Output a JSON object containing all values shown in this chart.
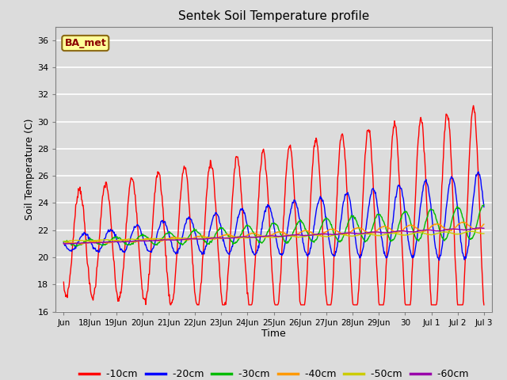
{
  "title": "Sentek Soil Temperature profile",
  "xlabel": "Time",
  "ylabel": "Soil Temperature (C)",
  "ylim": [
    16,
    37
  ],
  "yticks": [
    16,
    18,
    20,
    22,
    24,
    26,
    28,
    30,
    32,
    34,
    36
  ],
  "background_color": "#dcdcdc",
  "plot_bg_color": "#dcdcdc",
  "legend_label": "BA_met",
  "legend_bg": "#ffff99",
  "legend_border": "#8b6914",
  "line_colors": {
    "-10cm": "#ff0000",
    "-20cm": "#0000ff",
    "-30cm": "#00bb00",
    "-40cm": "#ff9900",
    "-50cm": "#cccc00",
    "-60cm": "#9900aa"
  },
  "xtick_positions": [
    0,
    1,
    2,
    3,
    4,
    5,
    6,
    7,
    8,
    9,
    10,
    11,
    12,
    13,
    14,
    15,
    16
  ],
  "xtick_labels": [
    "Jun",
    "18Jun",
    "19Jun",
    "20Jun",
    "21Jun",
    "22Jun",
    "23Jun",
    "24Jun",
    "25Jun",
    "26Jun",
    "27Jun",
    "28Jun",
    "29Jun",
    "30",
    "Jul 1",
    "Jul 2",
    "Jul 3"
  ]
}
